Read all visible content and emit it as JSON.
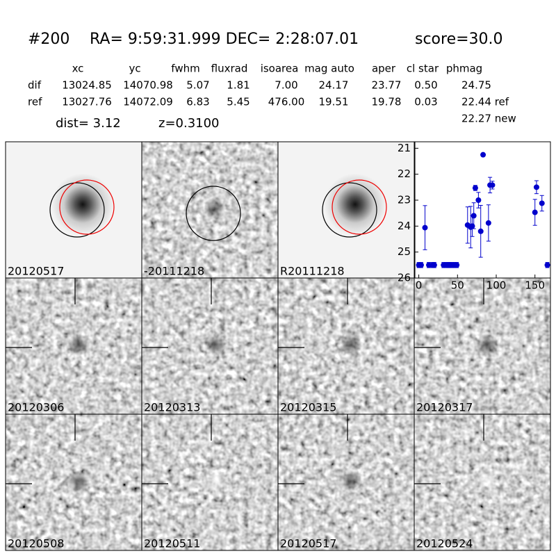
{
  "header": {
    "id": "#200",
    "coords": "RA= 9:59:31.999 DEC= 2:28:07.01",
    "score": "score=30.0"
  },
  "table": {
    "columns": [
      "xc",
      "yc",
      "fwhm",
      "fluxrad",
      "isoarea",
      "mag auto",
      "aper",
      "cl star",
      "phmag"
    ],
    "rows": [
      [
        "dif",
        "13024.85",
        "14070.98",
        "5.07",
        "1.81",
        "7.00",
        "24.17",
        "23.77",
        "0.50",
        "24.75"
      ],
      [
        "ref",
        "13027.76",
        "14072.09",
        "6.83",
        "5.45",
        "476.00",
        "19.51",
        "19.78",
        "0.03",
        "22.44 ref"
      ]
    ],
    "extra": "22.27 new"
  },
  "dist": "dist=  3.12",
  "z": "z=0.3100",
  "panels": [
    {
      "label": "20120517"
    },
    {
      "label": "-20111218"
    },
    {
      "label": "R20111218"
    },
    {
      "label": "20120306"
    },
    {
      "label": "20120313"
    },
    {
      "label": "20120315"
    },
    {
      "label": "20120317"
    },
    {
      "label": "20120508"
    },
    {
      "label": "20120511"
    },
    {
      "label": "20120517",
      "color": "#ff0000"
    },
    {
      "label": "20120524"
    }
  ],
  "chart_data": {
    "type": "scatter",
    "color": "#0000cc",
    "x": [
      0,
      3,
      8,
      13,
      18,
      20,
      32,
      35,
      38,
      40,
      43,
      46,
      49,
      63,
      67,
      69,
      71,
      73,
      77,
      80,
      83,
      90,
      92,
      95,
      150,
      152,
      159,
      166
    ],
    "values": [
      25.5,
      25.5,
      24.06,
      25.5,
      25.5,
      25.5,
      25.5,
      25.5,
      25.5,
      25.5,
      25.5,
      25.5,
      25.5,
      23.96,
      24.04,
      24.0,
      23.6,
      22.53,
      23.0,
      24.2,
      21.25,
      23.88,
      22.42,
      22.42,
      23.47,
      22.5,
      23.12,
      25.5
    ],
    "errors": [
      0.1,
      0.1,
      0.85,
      0.1,
      0.1,
      0.1,
      0.1,
      0.1,
      0.1,
      0.1,
      0.1,
      0.1,
      0.1,
      0.7,
      0.8,
      0.4,
      0.5,
      0.1,
      0.3,
      1.0,
      0.05,
      0.7,
      0.3,
      0.15,
      0.5,
      0.25,
      0.3,
      0.1
    ],
    "xlim": [
      -5,
      170
    ],
    "ylim": [
      20.75,
      26
    ],
    "y_inverted": true,
    "xticks": [
      0,
      50,
      100,
      150
    ],
    "yticks": [
      21,
      22,
      23,
      24,
      25,
      26
    ]
  }
}
